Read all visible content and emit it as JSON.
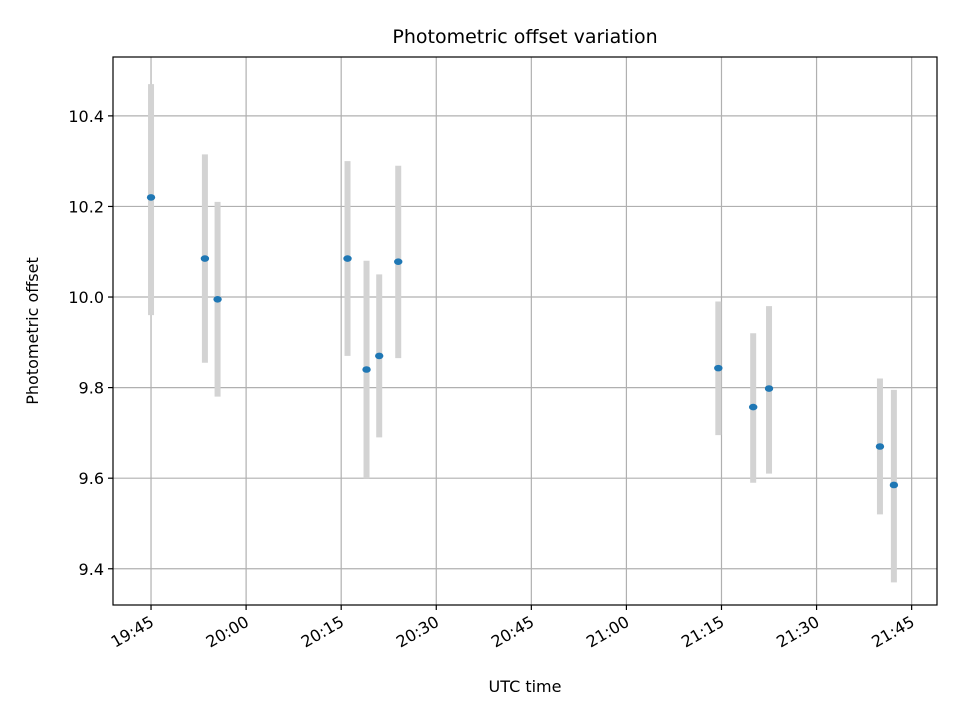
{
  "chart_data": {
    "type": "scatter",
    "title": "Photometric offset variation",
    "xlabel": "UTC time",
    "ylabel": "Photometric offset",
    "x_ticks": [
      "19:45",
      "20:00",
      "20:15",
      "20:30",
      "20:45",
      "21:00",
      "21:15",
      "21:30",
      "21:45"
    ],
    "x_range": [
      "19:39",
      "21:49"
    ],
    "y_ticks": [
      9.4,
      9.6,
      9.8,
      10.0,
      10.2,
      10.4
    ],
    "ylim": [
      9.32,
      10.53
    ],
    "grid": true,
    "colors": {
      "marker": "#1f77b4",
      "errorbar": "#d3d3d3",
      "grid": "#b0b0b0"
    },
    "series": [
      {
        "points": [
          {
            "x": "19:45",
            "y": 10.22,
            "yerr_low": 9.96,
            "yerr_high": 10.47
          },
          {
            "x": "19:53.5",
            "y": 10.085,
            "yerr_low": 9.855,
            "yerr_high": 10.315
          },
          {
            "x": "19:55.5",
            "y": 9.995,
            "yerr_low": 9.78,
            "yerr_high": 10.21
          },
          {
            "x": "20:16",
            "y": 10.085,
            "yerr_low": 9.87,
            "yerr_high": 10.3
          },
          {
            "x": "20:19",
            "y": 9.84,
            "yerr_low": 9.6,
            "yerr_high": 10.08
          },
          {
            "x": "20:21",
            "y": 9.87,
            "yerr_low": 9.69,
            "yerr_high": 10.05
          },
          {
            "x": "20:24",
            "y": 10.078,
            "yerr_low": 9.865,
            "yerr_high": 10.29
          },
          {
            "x": "21:14.5",
            "y": 9.843,
            "yerr_low": 9.695,
            "yerr_high": 9.99
          },
          {
            "x": "21:20",
            "y": 9.757,
            "yerr_low": 9.59,
            "yerr_high": 9.92
          },
          {
            "x": "21:22.5",
            "y": 9.798,
            "yerr_low": 9.61,
            "yerr_high": 9.98
          },
          {
            "x": "21:40",
            "y": 9.67,
            "yerr_low": 9.52,
            "yerr_high": 9.82
          },
          {
            "x": "21:42.2",
            "y": 9.585,
            "yerr_low": 9.37,
            "yerr_high": 9.795
          }
        ]
      }
    ]
  }
}
